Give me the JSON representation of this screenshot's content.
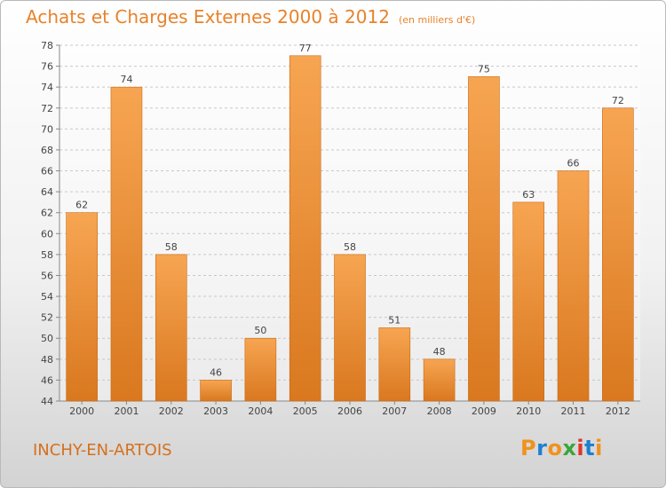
{
  "header": {
    "title": "Achats et Charges Externes 2000 à 2012",
    "subtitle": "(en milliers d'€)"
  },
  "footer": {
    "city": "INCHY-EN-ARTOIS",
    "logo_text": "Proxiti",
    "logo_colors": [
      "#f0921e",
      "#1e7fd1",
      "#f0921e",
      "#3aa63a",
      "#e0332b",
      "#1e7fd1",
      "#f0921e"
    ]
  },
  "chart_data": {
    "type": "bar",
    "title": "Achats et Charges Externes 2000 à 2012",
    "subtitle": "(en milliers d'€)",
    "categories": [
      "2000",
      "2001",
      "2002",
      "2003",
      "2004",
      "2005",
      "2006",
      "2007",
      "2008",
      "2009",
      "2010",
      "2011",
      "2012"
    ],
    "values": [
      62,
      74,
      58,
      46,
      50,
      77,
      58,
      51,
      48,
      75,
      63,
      66,
      72
    ],
    "ylim": [
      44,
      78
    ],
    "yticks": [
      44,
      46,
      48,
      50,
      52,
      54,
      56,
      58,
      60,
      62,
      64,
      66,
      68,
      70,
      72,
      74,
      76,
      78
    ],
    "grid": true,
    "colors": {
      "bar_top": "#f7a552",
      "bar_bottom": "#d9781f",
      "grid": "#c8c8c8",
      "text": "#444444"
    }
  }
}
